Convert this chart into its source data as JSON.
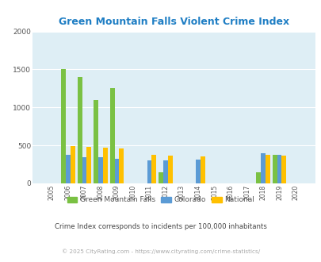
{
  "title": "Green Mountain Falls Violent Crime Index",
  "subtitle": "Crime Index corresponds to incidents per 100,000 inhabitants",
  "footer": "© 2025 CityRating.com - https://www.cityrating.com/crime-statistics/",
  "years": [
    2005,
    2006,
    2007,
    2008,
    2009,
    2010,
    2011,
    2012,
    2013,
    2014,
    2015,
    2016,
    2017,
    2018,
    2019,
    2020
  ],
  "gmf": [
    0,
    1500,
    1400,
    1100,
    1250,
    0,
    0,
    150,
    0,
    0,
    0,
    0,
    0,
    150,
    380,
    0
  ],
  "colorado": [
    0,
    375,
    345,
    340,
    325,
    0,
    305,
    300,
    0,
    310,
    0,
    0,
    0,
    400,
    375,
    0
  ],
  "national": [
    0,
    490,
    480,
    470,
    455,
    0,
    375,
    370,
    0,
    360,
    0,
    0,
    0,
    375,
    365,
    0
  ],
  "ylim": [
    0,
    2000
  ],
  "yticks": [
    0,
    500,
    1000,
    1500,
    2000
  ],
  "color_gmf": "#7ac143",
  "color_colorado": "#5b9bd5",
  "color_national": "#ffc000",
  "bg_plot": "#deeef5",
  "bg_fig": "#ffffff",
  "title_color": "#1f7ec4",
  "subtitle_color": "#444444",
  "footer_color": "#aaaaaa",
  "tick_color": "#555555",
  "grid_color": "#ffffff",
  "bar_width": 0.28
}
